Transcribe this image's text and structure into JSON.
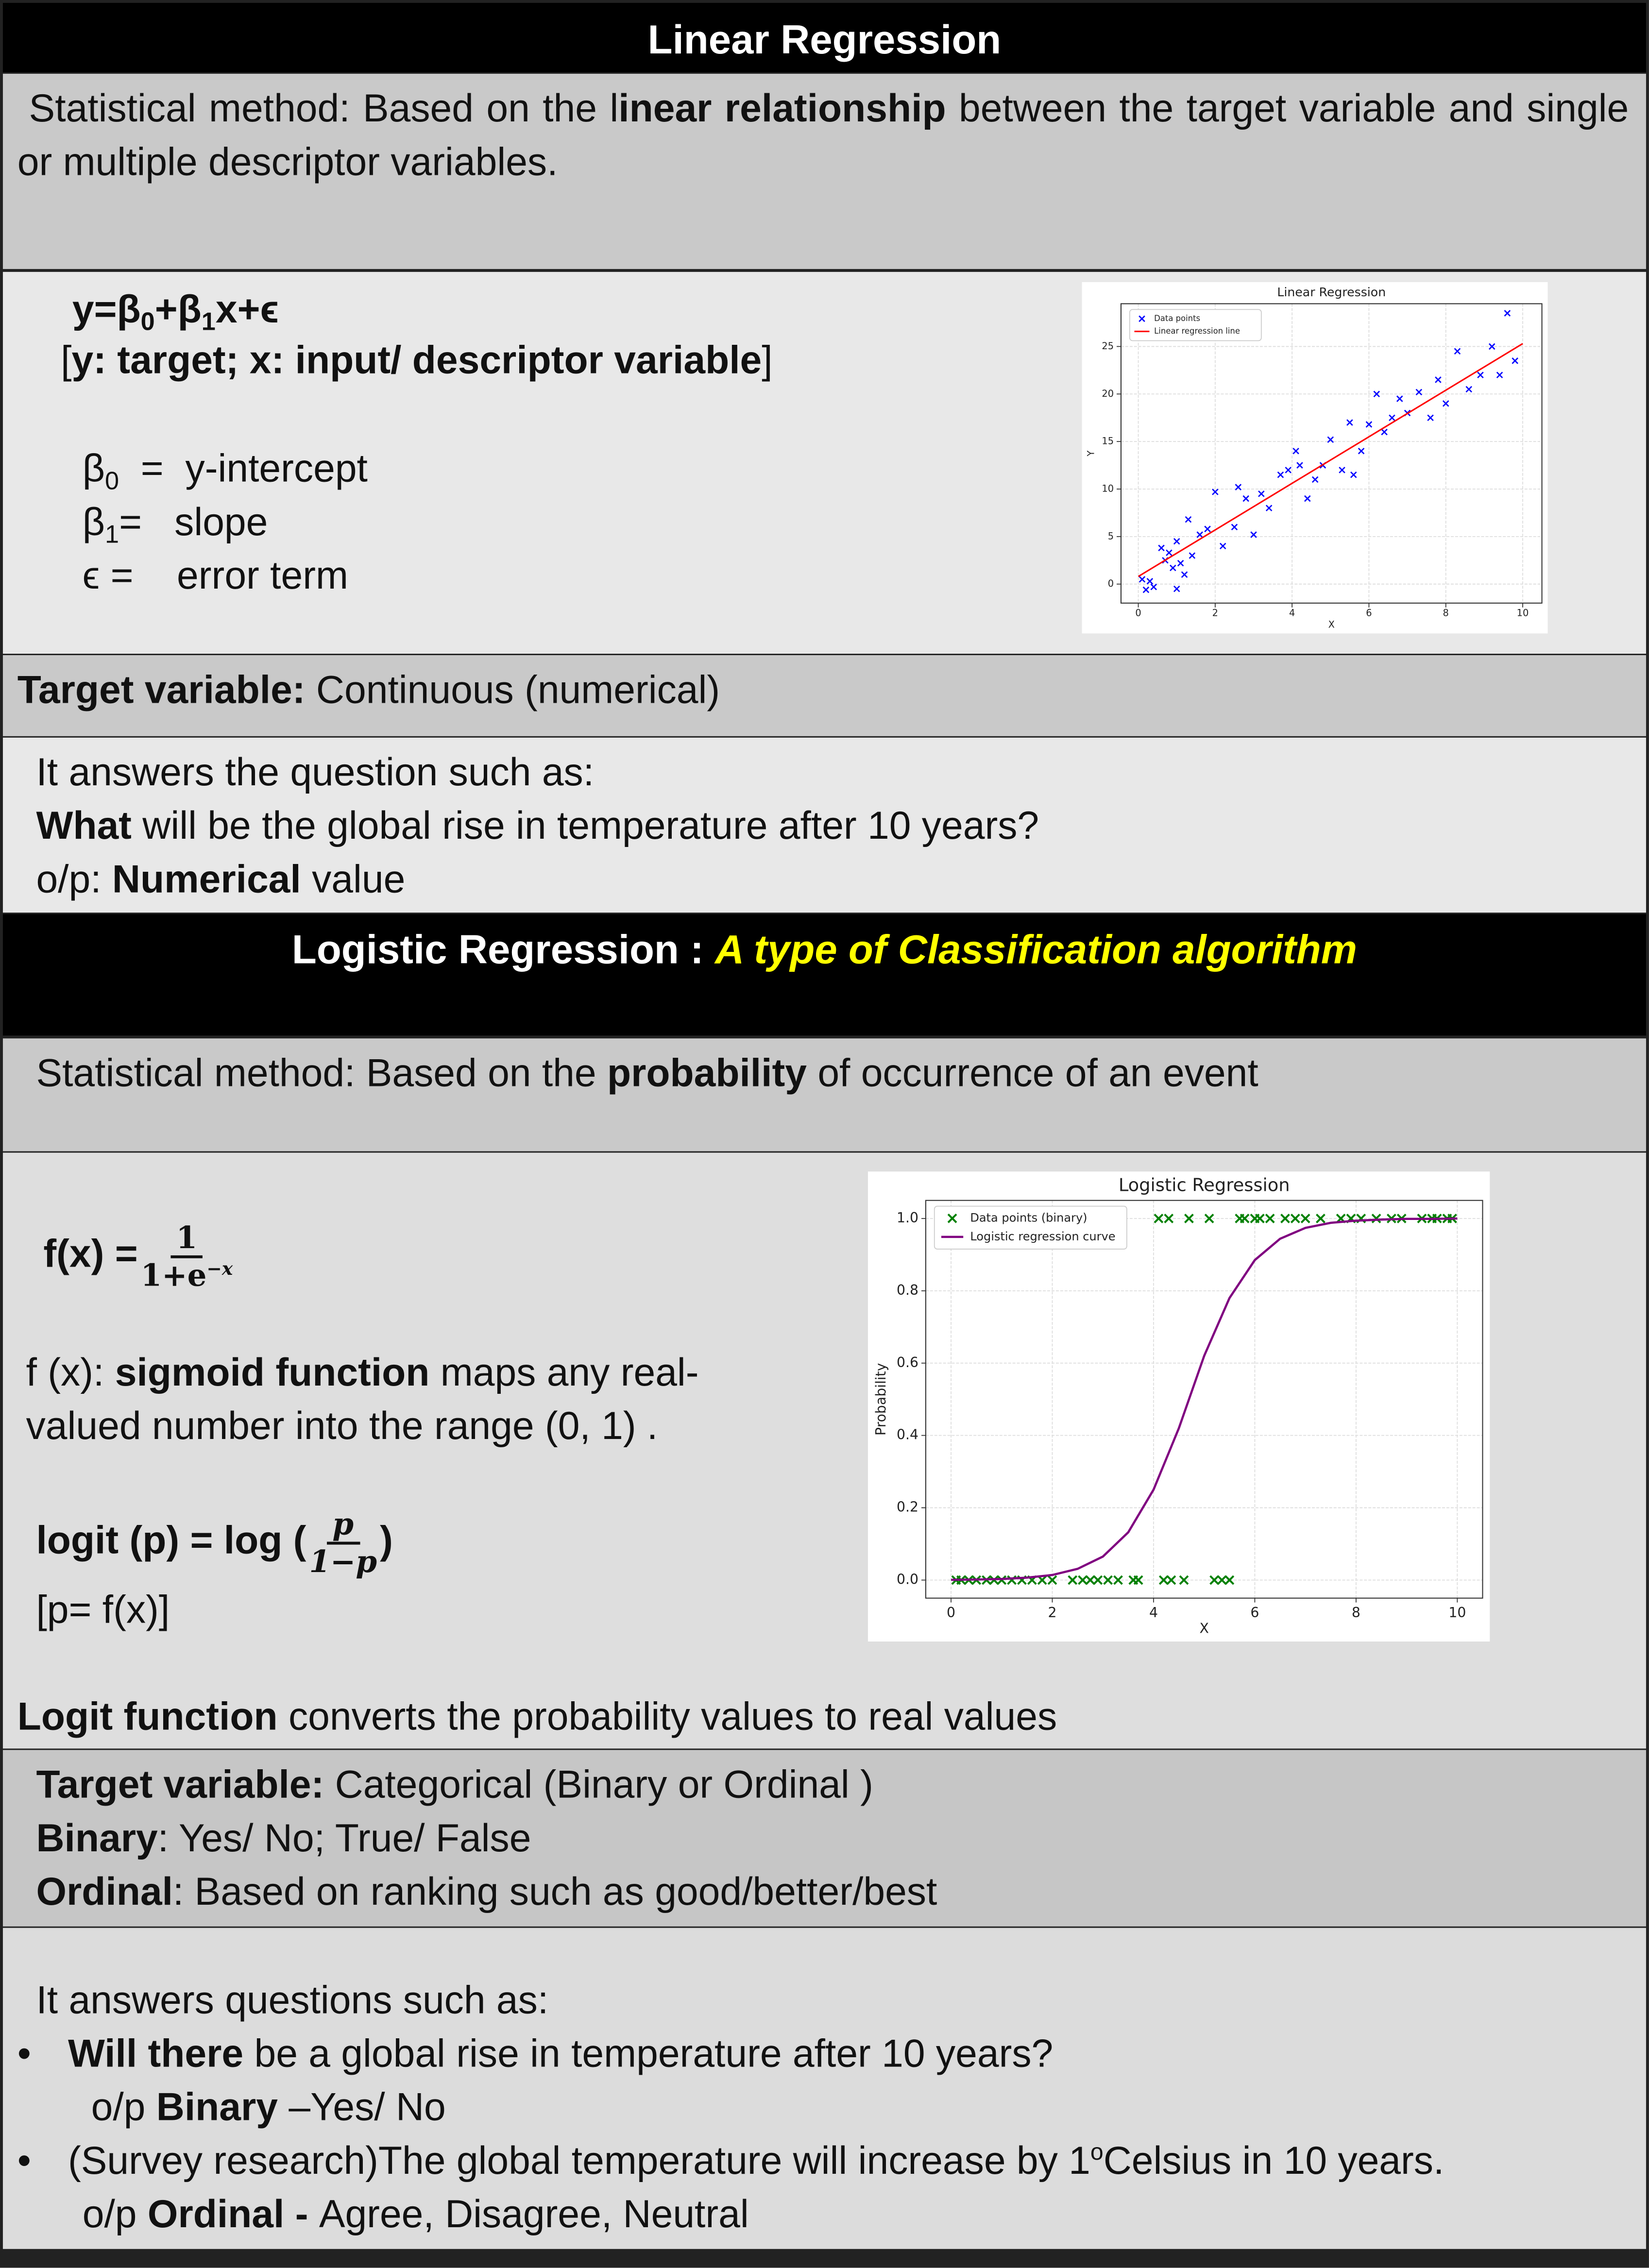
{
  "linear": {
    "title": "Linear Regression",
    "intro": [
      "Statistical method: Based on the l",
      "inear relationship",
      " between the target variable and single or multiple descriptor variables."
    ],
    "equation": [
      "y=β",
      "0",
      "+β",
      "1",
      "x+ϵ"
    ],
    "equation_note": [
      "[",
      "y: target; x: input/ descriptor variable",
      "]"
    ],
    "terms": [
      {
        "symbol": "β",
        "sub": "0",
        "eq": "=",
        "text": "y-intercept"
      },
      {
        "symbol": "β",
        "sub": "1",
        "eq": "=",
        "text": "slope"
      },
      {
        "symbol": "ϵ",
        "eq": "=",
        "text": "error term"
      }
    ],
    "chart_data": {
      "type": "scatter",
      "title": "Linear Regression",
      "x_label": "X",
      "y_label": "Y",
      "xlim": [
        -0.45,
        10.5
      ],
      "xticks": [
        0,
        2,
        4,
        6,
        8,
        10
      ],
      "ylim": [
        -2,
        29.5
      ],
      "yticks": [
        0,
        5,
        10,
        15,
        20,
        25
      ],
      "grid": true,
      "legend": "upper left",
      "series": [
        {
          "name": "Data points",
          "type": "scatter",
          "marker": "x",
          "color": "#0000ff",
          "x": [
            0.1,
            0.2,
            0.3,
            0.4,
            0.6,
            0.7,
            0.8,
            0.9,
            1.0,
            1.0,
            1.1,
            1.2,
            1.3,
            1.4,
            1.6,
            1.8,
            2.0,
            2.2,
            2.5,
            2.6,
            2.8,
            3.0,
            3.2,
            3.4,
            3.7,
            3.9,
            4.1,
            4.2,
            4.4,
            4.6,
            4.8,
            5.0,
            5.3,
            5.5,
            5.6,
            5.8,
            6.0,
            6.2,
            6.4,
            6.6,
            6.8,
            7.0,
            7.3,
            7.6,
            7.8,
            8.0,
            8.3,
            8.6,
            8.9,
            9.2,
            9.4,
            9.6,
            9.8
          ],
          "values": [
            0.5,
            -0.6,
            0.3,
            -0.3,
            3.8,
            2.5,
            3.3,
            1.7,
            -0.5,
            4.5,
            2.2,
            1.0,
            6.8,
            3.0,
            5.2,
            5.8,
            9.7,
            4.0,
            6.0,
            10.2,
            9.0,
            5.2,
            9.5,
            8.0,
            11.5,
            12.0,
            14.0,
            12.5,
            9.0,
            11.0,
            12.5,
            15.2,
            12.0,
            17.0,
            11.5,
            14.0,
            16.8,
            20.0,
            16.0,
            17.5,
            19.5,
            18.0,
            20.2,
            17.5,
            21.5,
            19.0,
            24.5,
            20.5,
            22.0,
            25.0,
            22.0,
            28.5,
            23.5
          ]
        },
        {
          "name": "Linear regression line",
          "type": "line",
          "color": "#ff0000",
          "x": [
            0,
            10
          ],
          "values": [
            0.8,
            25.3
          ]
        }
      ]
    },
    "target": [
      "Target variable:",
      " Continuous (numerical)"
    ],
    "question": {
      "lead": "It answers the question such as:",
      "q": [
        "What",
        " will be the global rise in temperature after 10 years?"
      ],
      "output": [
        "o/p: ",
        "Numerical",
        " value"
      ]
    }
  },
  "logistic": {
    "title": [
      "Logistic Regression : ",
      "A type of Classification algorithm"
    ],
    "intro": [
      "Statistical method: Based on the ",
      "probability",
      " of occurrence of an event"
    ],
    "sigmoid": [
      "f(x) =",
      "1",
      "1+e",
      "−x"
    ],
    "sigmoid_note": [
      "f  (x): ",
      "sigmoid function",
      " maps any real-valued number into the range (0, 1) ."
    ],
    "logit": [
      "logit (p) = log (",
      "p",
      "1−p",
      ")"
    ],
    "logit_note": "[p= f(x)]",
    "chart_data": {
      "type": "scatter",
      "title": "Logistic Regression",
      "x_label": "X",
      "y_label": "Probability",
      "xlim": [
        -0.5,
        10.5
      ],
      "xticks": [
        0,
        2,
        4,
        6,
        8,
        10
      ],
      "ylim": [
        -0.05,
        1.05
      ],
      "yticks": [
        {
          "value": 0,
          "label": "0.0"
        },
        0.2,
        0.4,
        0.6,
        0.8,
        {
          "value": 1,
          "label": "1.0"
        }
      ],
      "grid": true,
      "legend": "upper left",
      "series": [
        {
          "name": "Data points (binary)",
          "type": "scatter",
          "marker": "x",
          "color": "#008000",
          "x": [
            0.1,
            0.2,
            0.35,
            0.5,
            0.7,
            0.85,
            1.0,
            1.2,
            1.4,
            1.6,
            1.8,
            2.0,
            2.4,
            2.6,
            2.75,
            2.9,
            3.1,
            3.3,
            3.6,
            3.7,
            4.2,
            4.35,
            4.6,
            5.2,
            5.35,
            5.5,
            4.1,
            4.3,
            4.7,
            5.1,
            5.7,
            5.8,
            6.0,
            6.1,
            6.3,
            6.6,
            6.8,
            7.0,
            7.3,
            7.7,
            7.9,
            8.1,
            8.4,
            8.7,
            8.9,
            9.3,
            9.5,
            9.6,
            9.8,
            9.9
          ],
          "values": [
            0,
            0,
            0,
            0,
            0,
            0,
            0,
            0,
            0,
            0,
            0,
            0,
            0,
            0,
            0,
            0,
            0,
            0,
            0,
            0,
            0,
            0,
            0,
            0,
            0,
            0,
            1,
            1,
            1,
            1,
            1,
            1,
            1,
            1,
            1,
            1,
            1,
            1,
            1,
            1,
            1,
            1,
            1,
            1,
            1,
            1,
            1,
            1,
            1,
            1
          ]
        },
        {
          "name": "Logistic regression curve",
          "type": "line",
          "color": "#800080",
          "x": [
            0,
            0.5,
            1,
            1.5,
            2,
            2.5,
            3,
            3.5,
            4,
            4.5,
            5,
            5.5,
            6,
            6.5,
            7,
            7.5,
            8,
            8.5,
            9,
            9.5,
            10
          ],
          "values": [
            0.0006,
            0.0014,
            0.003,
            0.0066,
            0.014,
            0.031,
            0.065,
            0.132,
            0.25,
            0.42,
            0.62,
            0.78,
            0.885,
            0.944,
            0.974,
            0.988,
            0.994,
            0.997,
            0.999,
            0.999,
            1.0
          ]
        }
      ]
    },
    "logit_function": [
      "Logit function",
      " converts the probability values to real values"
    ],
    "target": [
      [
        "Target variable:",
        " Categorical (Binary or Ordinal )"
      ],
      [
        "Binary",
        ": Yes/ No; True/ False"
      ],
      [
        "Ordinal",
        ": Based on ranking such as good/better/best"
      ]
    ],
    "questions": {
      "lead": "It answers questions such as:",
      "items": [
        {
          "q": [
            "Will there",
            " be a global rise in temperature after 10 years?"
          ],
          "output": [
            "o/p ",
            "Binary",
            " –Yes/ No"
          ]
        },
        {
          "q": [
            "(Survey research)The global temperature will increase by 1",
            "o",
            "Celsius  in 10 years."
          ],
          "output": [
            "o/p ",
            "Ordinal - ",
            " Agree, Disagree, Neutral"
          ]
        }
      ]
    }
  }
}
